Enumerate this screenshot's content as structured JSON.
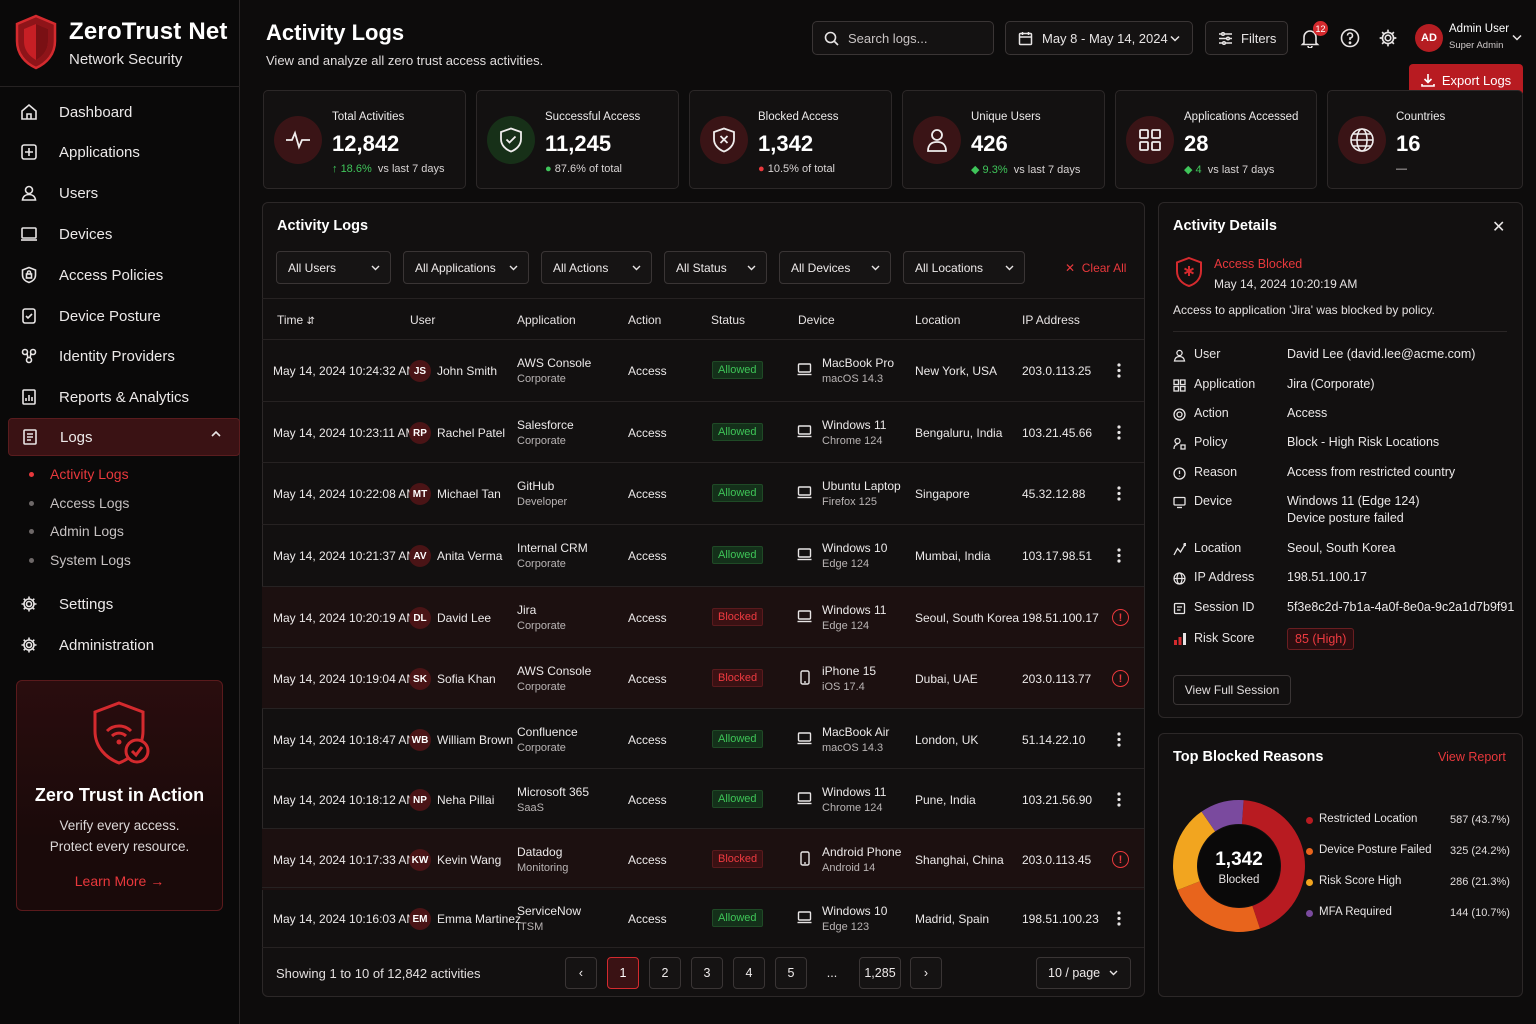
{
  "app": {
    "name": "ZeroTrust Net",
    "tagline": "Network Security"
  },
  "sidebar": {
    "items": [
      {
        "label": "Dashboard",
        "icon": "home-icon"
      },
      {
        "label": "Applications",
        "icon": "applications-icon"
      },
      {
        "label": "Users",
        "icon": "user-icon"
      },
      {
        "label": "Devices",
        "icon": "device-icon"
      },
      {
        "label": "Access Policies",
        "icon": "shield-icon"
      },
      {
        "label": "Device Posture",
        "icon": "posture-icon"
      },
      {
        "label": "Identity Providers",
        "icon": "identity-icon"
      },
      {
        "label": "Reports & Analytics",
        "icon": "reports-icon"
      },
      {
        "label": "Logs",
        "icon": "logs-icon"
      }
    ],
    "log_subitems": [
      "Activity Logs",
      "Access Logs",
      "Admin Logs",
      "System Logs"
    ],
    "bottom_items": [
      {
        "label": "Settings",
        "icon": "gear-icon"
      },
      {
        "label": "Administration",
        "icon": "admin-gear-icon"
      }
    ],
    "promo": {
      "title": "Zero Trust in Action",
      "line1": "Verify every access.",
      "line2": "Protect every resource.",
      "link": "Learn More"
    }
  },
  "header": {
    "title": "Activity Logs",
    "subtitle": "View and analyze all zero trust access activities.",
    "search_placeholder": "Search logs...",
    "date_range": "May 8 - May 14, 2024",
    "filters_label": "Filters",
    "notification_count": "12",
    "user_initials": "AD",
    "user_name": "Admin User",
    "user_role": "Super Admin",
    "export_label": "Export Logs"
  },
  "stats": [
    {
      "label": "Total Activities",
      "value": "12,842",
      "change": "18.6%",
      "note": "vs last 7 days",
      "icon": "pulse-icon"
    },
    {
      "label": "Successful Access",
      "value": "11,245",
      "change": "87.6%",
      "note": "of total",
      "icon": "shield-check-icon"
    },
    {
      "label": "Blocked Access",
      "value": "1,342",
      "change": "10.5%",
      "note": "of total",
      "icon": "shield-x-icon"
    },
    {
      "label": "Unique Users",
      "value": "426",
      "change": "9.3%",
      "note": "vs last 7 days",
      "icon": "user-icon"
    },
    {
      "label": "Applications Accessed",
      "value": "28",
      "change": "4",
      "note": "vs last 7 days",
      "icon": "grid-icon"
    },
    {
      "label": "Countries",
      "value": "16",
      "change": "—",
      "note": "",
      "icon": "globe-icon"
    }
  ],
  "logs": {
    "title": "Activity Logs",
    "filters": [
      "All Users",
      "All Applications",
      "All Actions",
      "All Status",
      "All Devices",
      "All Locations"
    ],
    "clear_all": "Clear All",
    "columns": [
      "Time",
      "User",
      "Application",
      "Action",
      "Status",
      "Device",
      "Location",
      "IP Address"
    ],
    "rows": [
      {
        "time": "May 14, 2024 10:24:32 AM",
        "initials": "JS",
        "user": "John Smith",
        "app": "AWS Console",
        "app_sub": "Corporate",
        "action": "Access",
        "status": "Allowed",
        "device": "MacBook Pro",
        "device_sub": "macOS 14.3",
        "device_type": "laptop",
        "location": "New York, USA",
        "ip": "203.0.113.25"
      },
      {
        "time": "May 14, 2024 10:23:11 AM",
        "initials": "RP",
        "user": "Rachel Patel",
        "app": "Salesforce",
        "app_sub": "Corporate",
        "action": "Access",
        "status": "Allowed",
        "device": "Windows 11",
        "device_sub": "Chrome 124",
        "device_type": "laptop",
        "location": "Bengaluru, India",
        "ip": "103.21.45.66"
      },
      {
        "time": "May 14, 2024 10:22:08 AM",
        "initials": "MT",
        "user": "Michael Tan",
        "app": "GitHub",
        "app_sub": "Developer",
        "action": "Access",
        "status": "Allowed",
        "device": "Ubuntu Laptop",
        "device_sub": "Firefox 125",
        "device_type": "laptop",
        "location": "Singapore",
        "ip": "45.32.12.88"
      },
      {
        "time": "May 14, 2024 10:21:37 AM",
        "initials": "AV",
        "user": "Anita Verma",
        "app": "Internal CRM",
        "app_sub": "Corporate",
        "action": "Access",
        "status": "Allowed",
        "device": "Windows 10",
        "device_sub": "Edge 124",
        "device_type": "laptop",
        "location": "Mumbai, India",
        "ip": "103.17.98.51"
      },
      {
        "time": "May 14, 2024 10:20:19 AM",
        "initials": "DL",
        "user": "David Lee",
        "app": "Jira",
        "app_sub": "Corporate",
        "action": "Access",
        "status": "Blocked",
        "device": "Windows 11",
        "device_sub": "Edge 124",
        "device_type": "laptop",
        "location": "Seoul, South Korea",
        "ip": "198.51.100.17"
      },
      {
        "time": "May 14, 2024 10:19:04 AM",
        "initials": "SK",
        "user": "Sofia Khan",
        "app": "AWS Console",
        "app_sub": "Corporate",
        "action": "Access",
        "status": "Blocked",
        "device": "iPhone 15",
        "device_sub": "iOS 17.4",
        "device_type": "phone",
        "location": "Dubai, UAE",
        "ip": "203.0.113.77"
      },
      {
        "time": "May 14, 2024 10:18:47 AM",
        "initials": "WB",
        "user": "William Brown",
        "app": "Confluence",
        "app_sub": "Corporate",
        "action": "Access",
        "status": "Allowed",
        "device": "MacBook Air",
        "device_sub": "macOS 14.3",
        "device_type": "laptop",
        "location": "London, UK",
        "ip": "51.14.22.10"
      },
      {
        "time": "May 14, 2024 10:18:12 AM",
        "initials": "NP",
        "user": "Neha Pillai",
        "app": "Microsoft 365",
        "app_sub": "SaaS",
        "action": "Access",
        "status": "Allowed",
        "device": "Windows 11",
        "device_sub": "Chrome 124",
        "device_type": "laptop",
        "location": "Pune, India",
        "ip": "103.21.56.90"
      },
      {
        "time": "May 14, 2024 10:17:33 AM",
        "initials": "KW",
        "user": "Kevin Wang",
        "app": "Datadog",
        "app_sub": "Monitoring",
        "action": "Access",
        "status": "Blocked",
        "device": "Android Phone",
        "device_sub": "Android 14",
        "device_type": "phone",
        "location": "Shanghai, China",
        "ip": "203.0.113.45"
      },
      {
        "time": "May 14, 2024 10:16:03 AM",
        "initials": "EM",
        "user": "Emma Martinez",
        "app": "ServiceNow",
        "app_sub": "ITSM",
        "action": "Access",
        "status": "Allowed",
        "device": "Windows 10",
        "device_sub": "Edge 123",
        "device_type": "laptop",
        "location": "Madrid, Spain",
        "ip": "198.51.100.23"
      }
    ],
    "footer": "Showing 1 to 10 of 12,842 activities",
    "pages": [
      "1",
      "2",
      "3",
      "4",
      "5",
      "...",
      "1,285"
    ],
    "current_page": "1",
    "page_size": "10 / page"
  },
  "details": {
    "title": "Activity Details",
    "event": "Access Blocked",
    "timestamp": "May 14, 2024 10:20:19 AM",
    "summary": "Access to application 'Jira' was blocked by policy.",
    "fields": [
      {
        "label": "User",
        "value": "David Lee (david.lee@acme.com)",
        "icon": "user-icon"
      },
      {
        "label": "Application",
        "value": "Jira (Corporate)",
        "icon": "grid-icon"
      },
      {
        "label": "Action",
        "value": "Access",
        "icon": "target-icon"
      },
      {
        "label": "Policy",
        "value": "Block - High Risk Locations",
        "icon": "policy-icon"
      },
      {
        "label": "Reason",
        "value": "Access from restricted country",
        "icon": "reason-icon"
      },
      {
        "label": "Device",
        "value": "Windows 11 (Edge 124)",
        "value2": "Device posture failed",
        "icon": "device-icon"
      },
      {
        "label": "Location",
        "value": "Seoul, South Korea",
        "icon": "location-icon"
      },
      {
        "label": "IP Address",
        "value": "198.51.100.17",
        "icon": "globe-icon"
      },
      {
        "label": "Session ID",
        "value": "5f3e8c2d-7b1a-4a0f-8e0a-9c2a1d7b9f91",
        "icon": "session-icon"
      }
    ],
    "risk_label": "Risk Score",
    "risk_value": "85 (High)",
    "view_session": "View Full Session"
  },
  "blocked_reasons": {
    "title": "Top Blocked Reasons",
    "link": "View Report",
    "center_value": "1,342",
    "center_label": "Blocked"
  },
  "chart_data": {
    "type": "pie",
    "title": "Top Blocked Reasons",
    "categories": [
      "Restricted Location",
      "Device Posture Failed",
      "Risk Score High",
      "MFA Required"
    ],
    "values": [
      587,
      325,
      286,
      144
    ],
    "percent_labels": [
      "587 (43.7%)",
      "325 (24.2%)",
      "286 (21.3%)",
      "144 (10.7%)"
    ],
    "colors": [
      "#b81b21",
      "#e8641c",
      "#f2a51f",
      "#7a4a9e"
    ],
    "donut": true
  }
}
